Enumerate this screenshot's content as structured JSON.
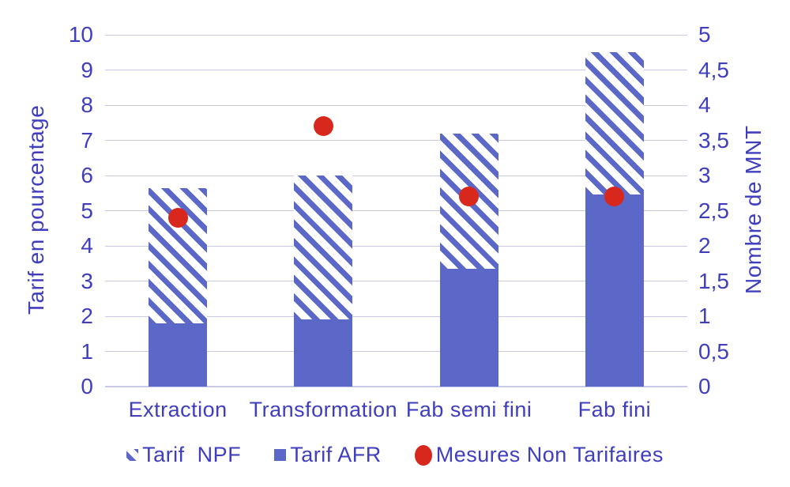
{
  "chart_data": {
    "type": "bar",
    "subtype": "stacked-bars-with-dot-overlay",
    "title": "",
    "categories": [
      "Extraction",
      "Transformation",
      "Fab semi fini",
      "Fab fini"
    ],
    "series": [
      {
        "name": "Tarif  NPF",
        "style": "hatched",
        "axis": "left",
        "values": [
          3.85,
          4.1,
          3.85,
          4.05
        ]
      },
      {
        "name": "Tarif AFR",
        "style": "solid",
        "axis": "left",
        "values": [
          1.8,
          1.9,
          3.35,
          5.45
        ]
      },
      {
        "name": "Mesures Non Tarifaires",
        "style": "dot",
        "axis": "right",
        "values": [
          2.4,
          3.7,
          2.7,
          2.7
        ]
      }
    ],
    "stack_totals": [
      5.65,
      6.0,
      7.2,
      9.5
    ],
    "ylabel_left": "Tarif en pourcentage",
    "ylabel_right": "Nombre de MNT",
    "xlabel": "",
    "left_axis": {
      "min": 0,
      "max": 10,
      "step": 1,
      "ticks": [
        "0",
        "1",
        "2",
        "3",
        "4",
        "5",
        "6",
        "7",
        "8",
        "9",
        "10"
      ]
    },
    "right_axis": {
      "min": 0,
      "max": 5,
      "step": 0.5,
      "ticks": [
        "0",
        "0,5",
        "1",
        "1,5",
        "2",
        "2,5",
        "3",
        "3,5",
        "4",
        "4,5",
        "5"
      ]
    },
    "grid": true,
    "legend_position": "bottom",
    "colors": {
      "bar_blue": "#5b68c8",
      "axis_text": "#3e3ebe",
      "dot_red": "#d8271d",
      "gridline": "#c9c9ea"
    }
  }
}
